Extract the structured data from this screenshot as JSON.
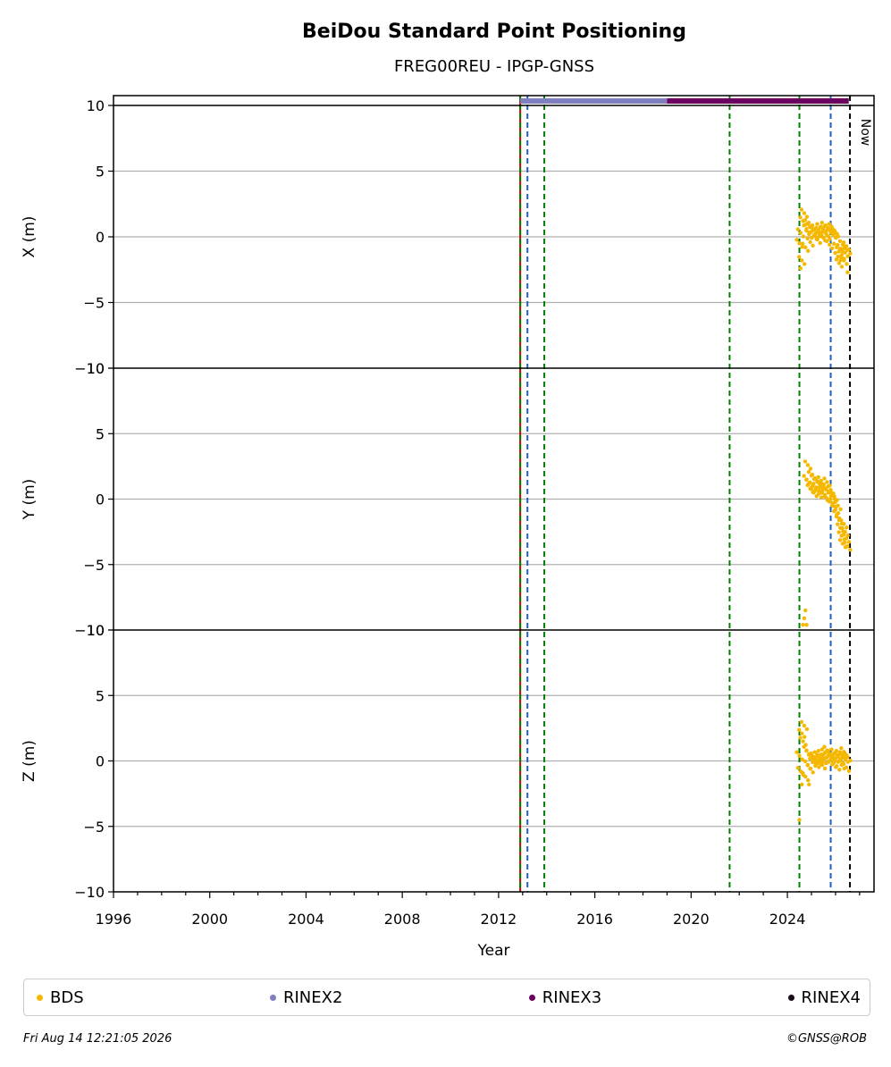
{
  "chart_data": {
    "type": "scatter",
    "title": "BeiDou Standard Point Positioning",
    "subtitle": "FREG00REU - IPGP-GNSS",
    "xlabel": "Year",
    "xlim": [
      1996.0,
      2027.6
    ],
    "xticks": [
      1996,
      2000,
      2004,
      2008,
      2012,
      2016,
      2020,
      2024
    ],
    "xtick_labels": [
      "1996",
      "2000",
      "2004",
      "2008",
      "2012",
      "2016",
      "2020",
      "2024"
    ],
    "grid": "horizontal",
    "panels": [
      {
        "id": "x",
        "ylabel": "X (m)",
        "ylim": [
          -10,
          10
        ],
        "yticks": [
          10,
          5,
          0,
          -5,
          -10
        ],
        "ytick_labels": [
          "10",
          "5",
          "0",
          "−5",
          "−10"
        ]
      },
      {
        "id": "y",
        "ylabel": "Y (m)",
        "ylim": [
          -10,
          10
        ],
        "yticks": [
          10,
          5,
          0,
          -5,
          -10
        ],
        "ytick_labels": [
          "10",
          "5",
          "0",
          "−5",
          "−10"
        ]
      },
      {
        "id": "z",
        "ylabel": "Z (m)",
        "ylim": [
          -10,
          10
        ],
        "yticks": [
          10,
          5,
          0,
          -5,
          -10
        ],
        "ytick_labels": [
          "10",
          "5",
          "0",
          "−5",
          "−10"
        ]
      }
    ],
    "series": [
      {
        "name": "BDS",
        "color": "#f5b800",
        "x_values": [
          2024.5,
          2024.55,
          2024.6,
          2024.65,
          2024.7,
          2024.75,
          2024.8,
          2024.85,
          2024.9,
          2024.95,
          2025.0,
          2025.05,
          2025.1,
          2025.15,
          2025.2,
          2025.25,
          2025.3,
          2025.35,
          2025.4,
          2025.45,
          2025.5,
          2025.55,
          2025.6,
          2025.65,
          2025.7,
          2025.75,
          2025.8,
          2025.85,
          2025.9,
          2025.95,
          2026.0,
          2026.05,
          2026.1,
          2026.15,
          2026.2,
          2026.25,
          2026.3,
          2026.35,
          2026.4,
          2026.45,
          2026.5
        ],
        "x_m": [
          -0.5,
          0.3,
          -1.8,
          1.2,
          1.8,
          -0.8,
          0.6,
          1.0,
          0.2,
          -0.4,
          0.8,
          0.5,
          0.1,
          0.6,
          0.3,
          -0.2,
          0.4,
          0.7,
          0.2,
          0.0,
          0.5,
          0.8,
          0.3,
          0.1,
          0.6,
          -0.6,
          0.4,
          0.7,
          0.2,
          0.5,
          0.3,
          -0.8,
          -1.5,
          -2.0,
          -0.9,
          -1.4,
          -0.6,
          -1.8,
          -1.2,
          -0.7,
          -1.0
        ],
        "y_m": [
          null,
          null,
          null,
          null,
          null,
          null,
          1.5,
          2.6,
          1.2,
          0.8,
          1.8,
          1.0,
          0.5,
          1.6,
          0.9,
          1.3,
          0.4,
          1.1,
          1.4,
          0.6,
          1.0,
          0.2,
          0.8,
          1.3,
          0.5,
          -0.2,
          0.7,
          0.3,
          -0.3,
          0.2,
          -0.8,
          -1.2,
          -0.5,
          -1.6,
          -2.2,
          -2.8,
          -3.4,
          -1.9,
          -2.5,
          -3.0,
          -3.6
        ],
        "z_m": [
          0.4,
          -0.8,
          2.1,
          1.5,
          2.7,
          -1.2,
          0.8,
          -0.3,
          0.5,
          -0.6,
          0.2,
          -0.1,
          0.3,
          0.1,
          -0.2,
          0.4,
          0.0,
          0.2,
          0.5,
          -0.3,
          0.1,
          0.6,
          0.2,
          0.8,
          0.4,
          0.0,
          0.5,
          0.3,
          -0.2,
          0.6,
          0.2,
          -0.4,
          0.3,
          0.5,
          0.1,
          -0.3,
          0.4,
          0.7,
          0.2,
          -0.5,
          0.3
        ],
        "extra_points": [
          {
            "panel": "x",
            "x": 2024.55,
            "y": -2.4
          },
          {
            "panel": "x",
            "x": 2026.5,
            "y": -2.7
          },
          {
            "panel": "y",
            "x": 2024.75,
            "y": -8.5
          },
          {
            "panel": "y",
            "x": 2024.7,
            "y": -9.1
          },
          {
            "panel": "y",
            "x": 2024.8,
            "y": -9.6
          },
          {
            "panel": "y",
            "x": 2024.65,
            "y": -9.6
          },
          {
            "panel": "z",
            "x": 2024.5,
            "y": -4.5
          },
          {
            "panel": "z",
            "x": 2024.6,
            "y": -1.8
          },
          {
            "panel": "z",
            "x": 2024.9,
            "y": -1.8
          }
        ]
      },
      {
        "name": "RINEX2",
        "color": "#8080c0",
        "bar_start": 2012.9,
        "bar_end": 2019.0
      },
      {
        "name": "RINEX3",
        "color": "#6a0060",
        "bar_start": 2019.0,
        "bar_end": 2026.55
      },
      {
        "name": "RINEX4",
        "color": "#1a0a1a"
      }
    ],
    "vertical_lines": [
      {
        "x": 2012.9,
        "color": "#cc0000",
        "style": "solid"
      },
      {
        "x": 2012.9,
        "color": "#008000",
        "style": "dashed"
      },
      {
        "x": 2013.2,
        "color": "#1f5fbf",
        "style": "dashed"
      },
      {
        "x": 2013.9,
        "color": "#008000",
        "style": "dashed"
      },
      {
        "x": 2021.6,
        "color": "#008000",
        "style": "dashed"
      },
      {
        "x": 2024.5,
        "color": "#008000",
        "style": "dashed"
      },
      {
        "x": 2025.8,
        "color": "#1f5fbf",
        "style": "dashed"
      },
      {
        "x": 2026.6,
        "color": "#000000",
        "style": "dashed"
      }
    ],
    "now_label": "Now",
    "now_x": 2026.6
  },
  "legend": [
    {
      "label": "BDS",
      "color": "#f5b800"
    },
    {
      "label": "RINEX2",
      "color": "#8080c0"
    },
    {
      "label": "RINEX3",
      "color": "#6a0060"
    },
    {
      "label": "RINEX4",
      "color": "#1a0a1a"
    }
  ],
  "footer": {
    "timestamp": "Fri Aug 14 12:21:05 2026",
    "credit": "©GNSS@ROB"
  }
}
